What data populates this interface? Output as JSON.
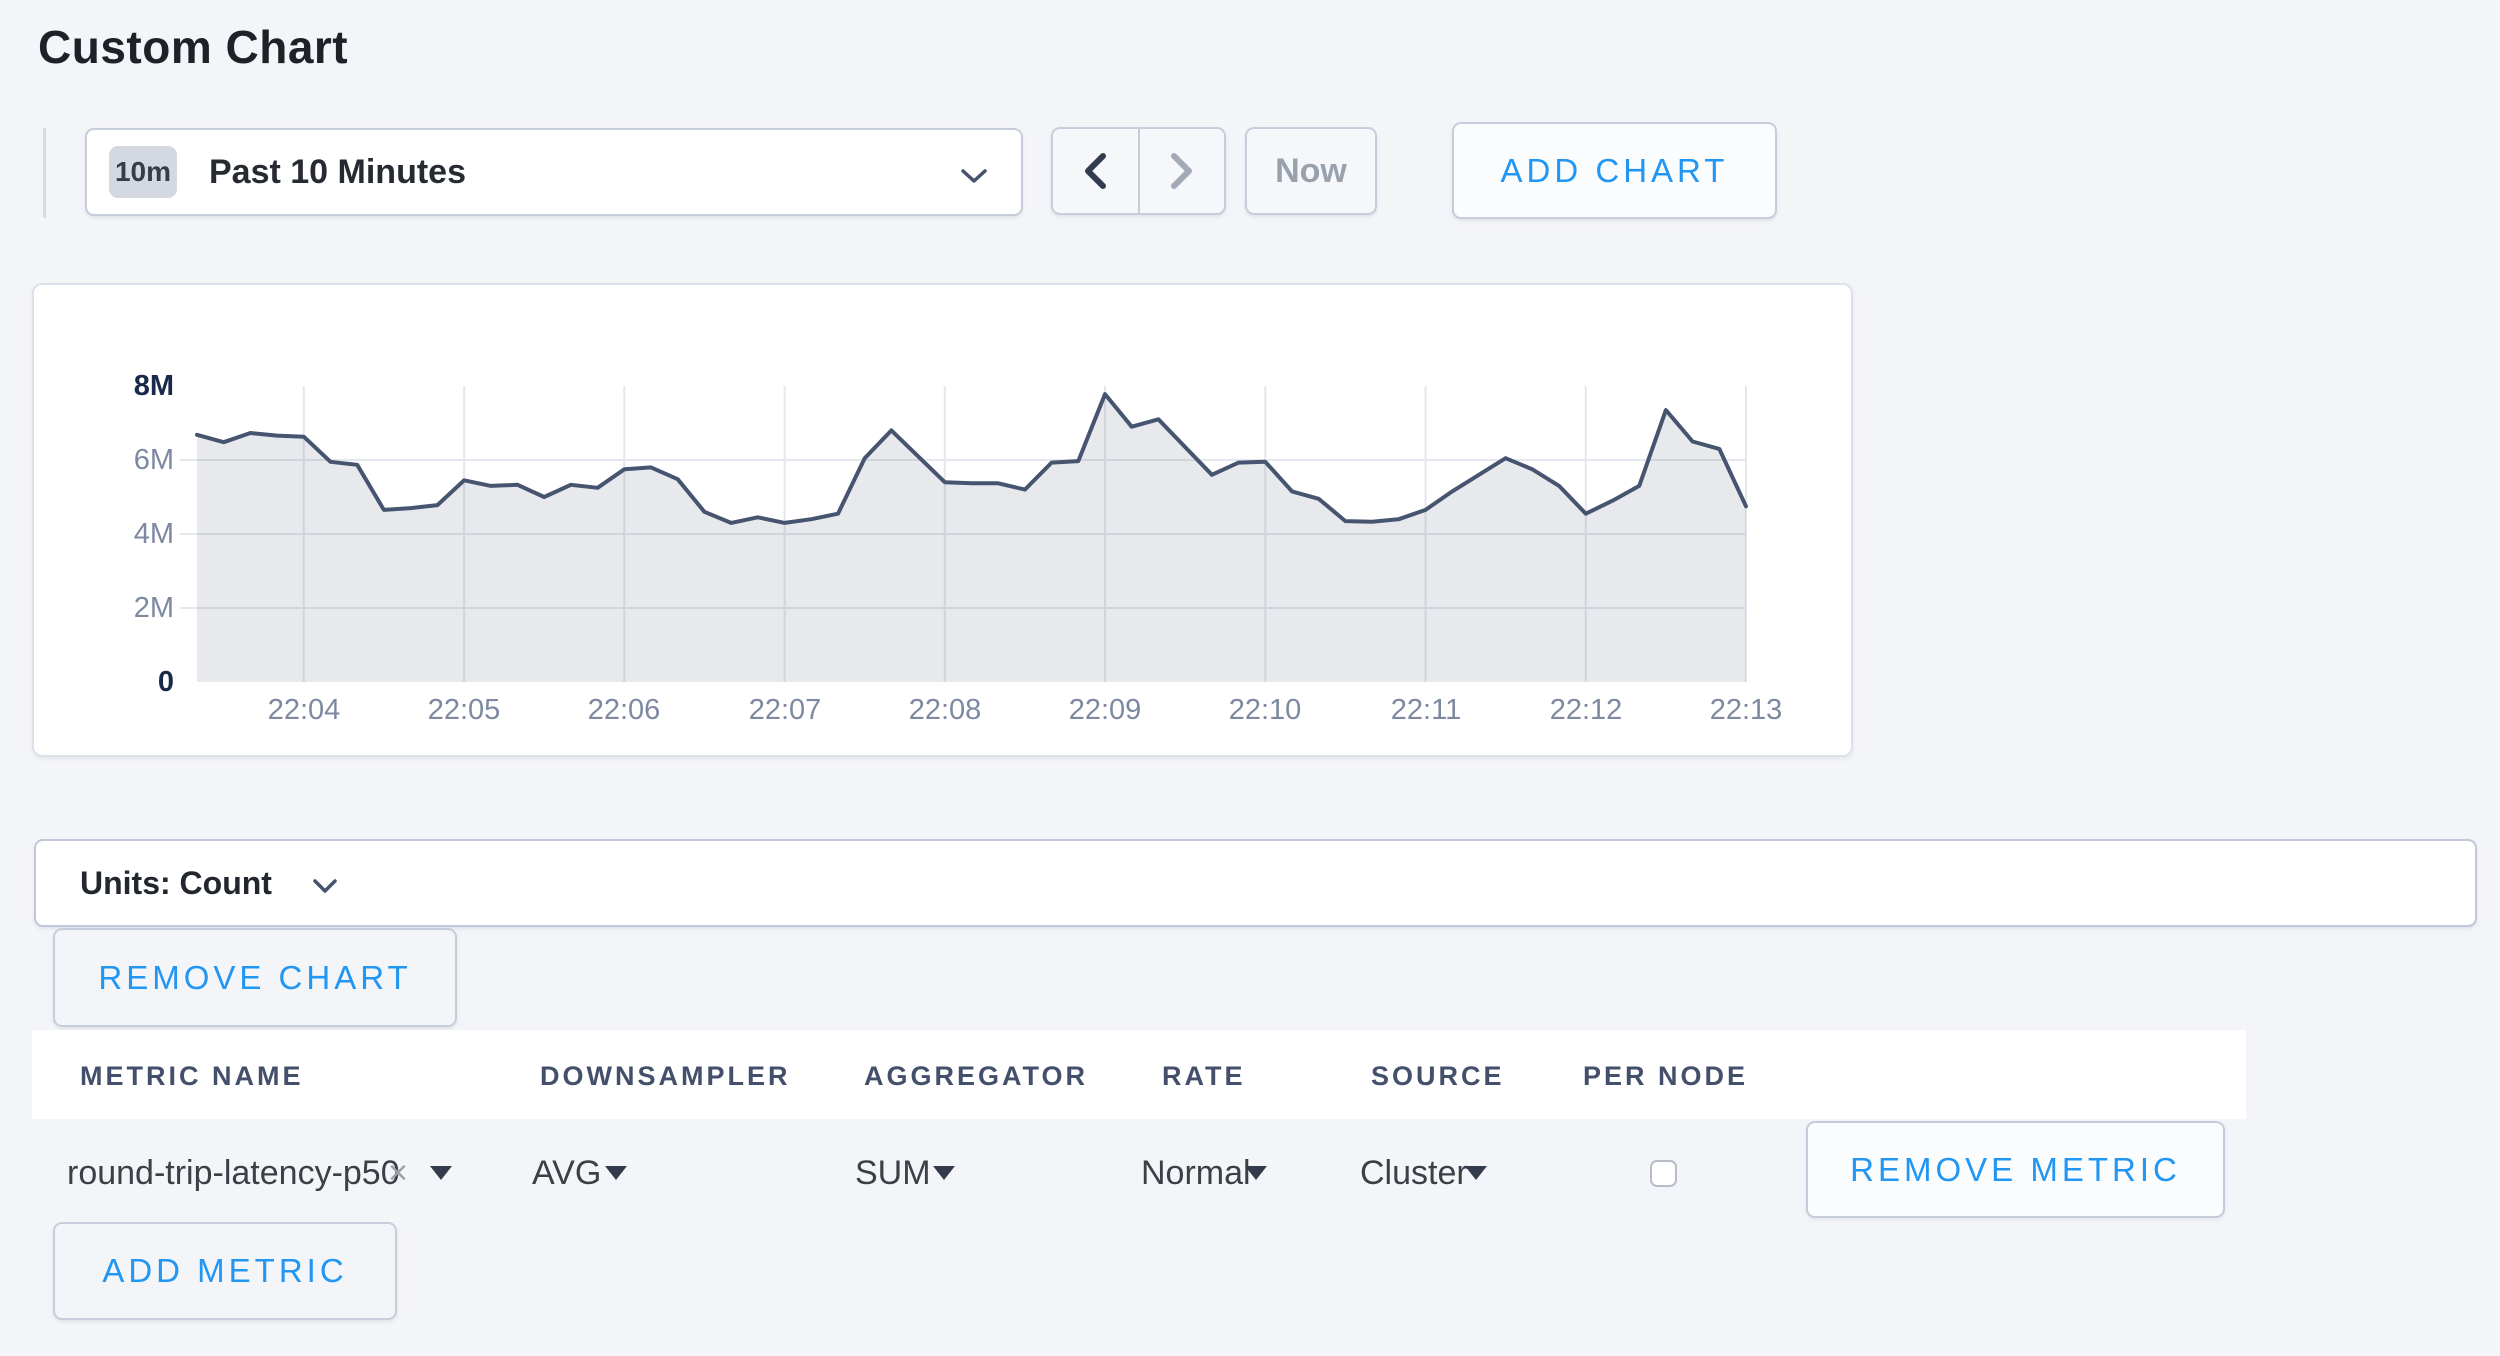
{
  "header": {
    "title": "Custom Chart"
  },
  "toolbar": {
    "time_range": {
      "badge": "10m",
      "label": "Past 10 Minutes"
    },
    "now_label": "Now",
    "add_chart_label": "ADD CHART"
  },
  "chart_data": {
    "type": "area",
    "title": "",
    "xlabel": "",
    "ylabel": "",
    "units": "Count",
    "grid": true,
    "legend": "none",
    "ylim": [
      0,
      8000000
    ],
    "y_ticks": [
      {
        "label": "8M",
        "value": 8000000
      },
      {
        "label": "6M",
        "value": 6000000
      },
      {
        "label": "4M",
        "value": 4000000
      },
      {
        "label": "2M",
        "value": 2000000
      },
      {
        "label": "0",
        "value": 0
      }
    ],
    "x_ticks": [
      "22:04",
      "22:05",
      "22:06",
      "22:07",
      "22:08",
      "22:09",
      "22:10",
      "22:11",
      "22:12",
      "22:13"
    ],
    "line_color": "#475470",
    "fill_color": "rgba(71,84,112,0.13)",
    "series": [
      {
        "name": "round-trip-latency-p50",
        "times": [
          "22:03:20",
          "22:03:30",
          "22:03:40",
          "22:03:50",
          "22:04:00",
          "22:04:10",
          "22:04:20",
          "22:04:30",
          "22:04:40",
          "22:04:50",
          "22:05:00",
          "22:05:10",
          "22:05:20",
          "22:05:30",
          "22:05:40",
          "22:05:50",
          "22:06:00",
          "22:06:10",
          "22:06:20",
          "22:06:30",
          "22:06:40",
          "22:06:50",
          "22:07:00",
          "22:07:10",
          "22:07:20",
          "22:07:30",
          "22:07:40",
          "22:07:50",
          "22:08:00",
          "22:08:10",
          "22:08:20",
          "22:08:30",
          "22:08:40",
          "22:08:50",
          "22:09:00",
          "22:09:10",
          "22:09:20",
          "22:09:30",
          "22:09:40",
          "22:09:50",
          "22:10:00",
          "22:10:10",
          "22:10:20",
          "22:10:30",
          "22:10:40",
          "22:10:50",
          "22:11:00",
          "22:11:10",
          "22:11:20",
          "22:11:30",
          "22:11:40",
          "22:11:50",
          "22:12:00",
          "22:12:10",
          "22:12:20",
          "22:12:30",
          "22:12:40",
          "22:12:50",
          "22:13:00"
        ],
        "values": [
          6680000,
          6480000,
          6730000,
          6660000,
          6630000,
          5950000,
          5870000,
          4650000,
          4700000,
          4780000,
          5450000,
          5300000,
          5330000,
          5000000,
          5330000,
          5250000,
          5750000,
          5800000,
          5480000,
          4600000,
          4300000,
          4450000,
          4300000,
          4400000,
          4550000,
          6050000,
          6800000,
          6100000,
          5400000,
          5370000,
          5370000,
          5200000,
          5930000,
          5970000,
          7780000,
          6900000,
          7100000,
          6350000,
          5600000,
          5930000,
          5950000,
          5150000,
          4950000,
          4350000,
          4330000,
          4400000,
          4650000,
          5150000,
          5600000,
          6050000,
          5750000,
          5300000,
          4550000,
          4900000,
          5300000,
          7350000,
          6500000,
          6300000,
          4750000
        ]
      }
    ]
  },
  "units_bar": {
    "label": "Units: Count"
  },
  "chart_actions": {
    "remove_chart_label": "REMOVE CHART",
    "add_metric_label": "ADD METRIC"
  },
  "table": {
    "headers": [
      "METRIC NAME",
      "DOWNSAMPLER",
      "AGGREGATOR",
      "RATE",
      "SOURCE",
      "PER NODE"
    ]
  },
  "metric_row": {
    "metric_name": "round-trip-latency-p50",
    "downsampler": "AVG",
    "aggregator": "SUM",
    "rate": "Normal",
    "source": "Cluster",
    "per_node_checked": false,
    "remove_metric_label": "REMOVE METRIC"
  },
  "icons": {
    "remove_token": "×"
  },
  "colors": {
    "accent_blue": "#2196f3",
    "page_background": "#f4f5f9",
    "line": "#475470",
    "axis_strong": "#19294a",
    "axis_muted": "#7d89a1"
  }
}
